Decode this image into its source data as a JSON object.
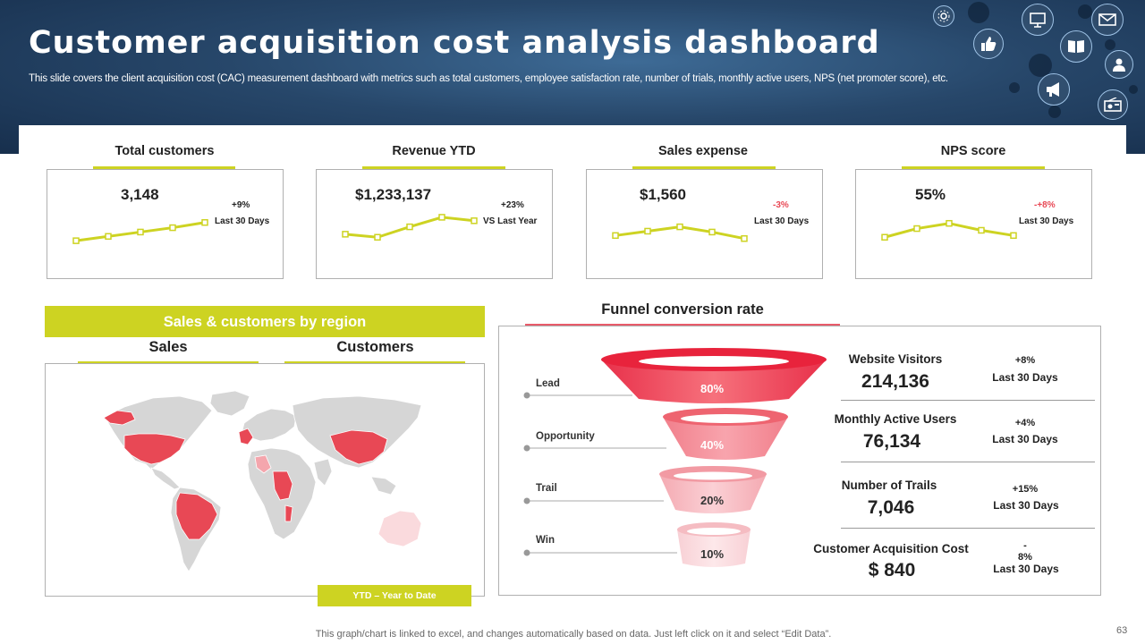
{
  "header": {
    "title": "Customer acquisition cost analysis dashboard",
    "subtitle": "This slide covers the client acquisition cost (CAC) measurement dashboard with metrics such as total customers, employee satisfaction rate, number of trials, monthly active users, NPS (net promoter score), etc.",
    "icons": [
      "settings-icon",
      "thumbs-up-icon",
      "presentation-icon",
      "book-icon",
      "email-icon",
      "user-icon",
      "megaphone-icon",
      "radio-icon"
    ]
  },
  "kpis": [
    {
      "label": "Total customers",
      "value": "3,148",
      "change": "+9%",
      "period": "Last 30 Days",
      "trend": [
        1,
        2,
        3,
        4,
        5.2
      ]
    },
    {
      "label": "Revenue YTD",
      "value": "$1,233,137",
      "change": "+23%",
      "period": "VS Last Year",
      "trend": [
        2.5,
        1.8,
        4.2,
        6.4,
        5.6
      ]
    },
    {
      "label": "Sales expense",
      "value": "$1,560",
      "change": "-3%",
      "period": "Last 30 Days",
      "trend": [
        2.2,
        3.2,
        4.2,
        3.0,
        1.5
      ]
    },
    {
      "label": "NPS score",
      "value": "55%",
      "change": "-+8%",
      "period": "Last 30 Days",
      "trend": [
        1.8,
        3.8,
        5.0,
        3.4,
        2.2
      ]
    }
  ],
  "region": {
    "header": "Sales & customers by region",
    "tabs": [
      "Sales",
      "Customers"
    ],
    "badge": "YTD – Year to Date"
  },
  "funnel": {
    "title": "Funnel conversion rate",
    "stages": [
      {
        "label": "Lead",
        "percent": "80%"
      },
      {
        "label": "Opportunity",
        "percent": "40%"
      },
      {
        "label": "Trail",
        "percent": "20%"
      },
      {
        "label": "Win",
        "percent": "10%"
      }
    ],
    "metrics": [
      {
        "name": "Website Visitors",
        "value": "214,136",
        "change": "+8%",
        "period": "Last 30 Days"
      },
      {
        "name": "Monthly Active Users",
        "value": "76,134",
        "change": "+4%",
        "period": "Last 30 Days"
      },
      {
        "name": "Number of Trails",
        "value": "7,046",
        "change": "+15%",
        "period": "Last 30 Days"
      },
      {
        "name": "Customer Acquisition Cost",
        "value": "$ 840",
        "change": "-\n8%",
        "period": "Last 30 Days"
      }
    ]
  },
  "footer": {
    "note": "This graph/chart is linked to excel,  and changes automatically based on data. Just left click on it and select “Edit Data”.",
    "page": "63"
  },
  "colors": {
    "accent": "#cdd322",
    "negative": "#e84855",
    "funnel_dark": "#e63946",
    "highlight": "#f0616e",
    "light": "#fadadd"
  }
}
